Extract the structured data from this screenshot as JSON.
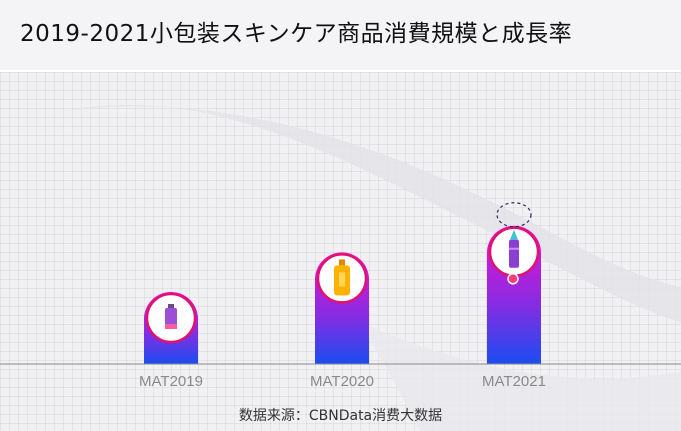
{
  "title": "2019-2021小包装スキンケア商品消費規模と成長率",
  "source": "数据来源：CBNData消费大数据",
  "chart_data": {
    "type": "bar",
    "categories": [
      "MAT2019",
      "MAT2020",
      "MAT2021"
    ],
    "values": [
      1.0,
      1.55,
      1.92
    ],
    "ylim": [
      0,
      2.2
    ],
    "grid": false,
    "icons": [
      "small-tube-icon",
      "bottle-icon",
      "lipstick-pencil-icon"
    ],
    "bar_gradient": [
      "#ee11cc",
      "#8a2be2",
      "#1b4df0"
    ],
    "badge_ring_color": "#e0126b",
    "axis_color": "#888888"
  }
}
